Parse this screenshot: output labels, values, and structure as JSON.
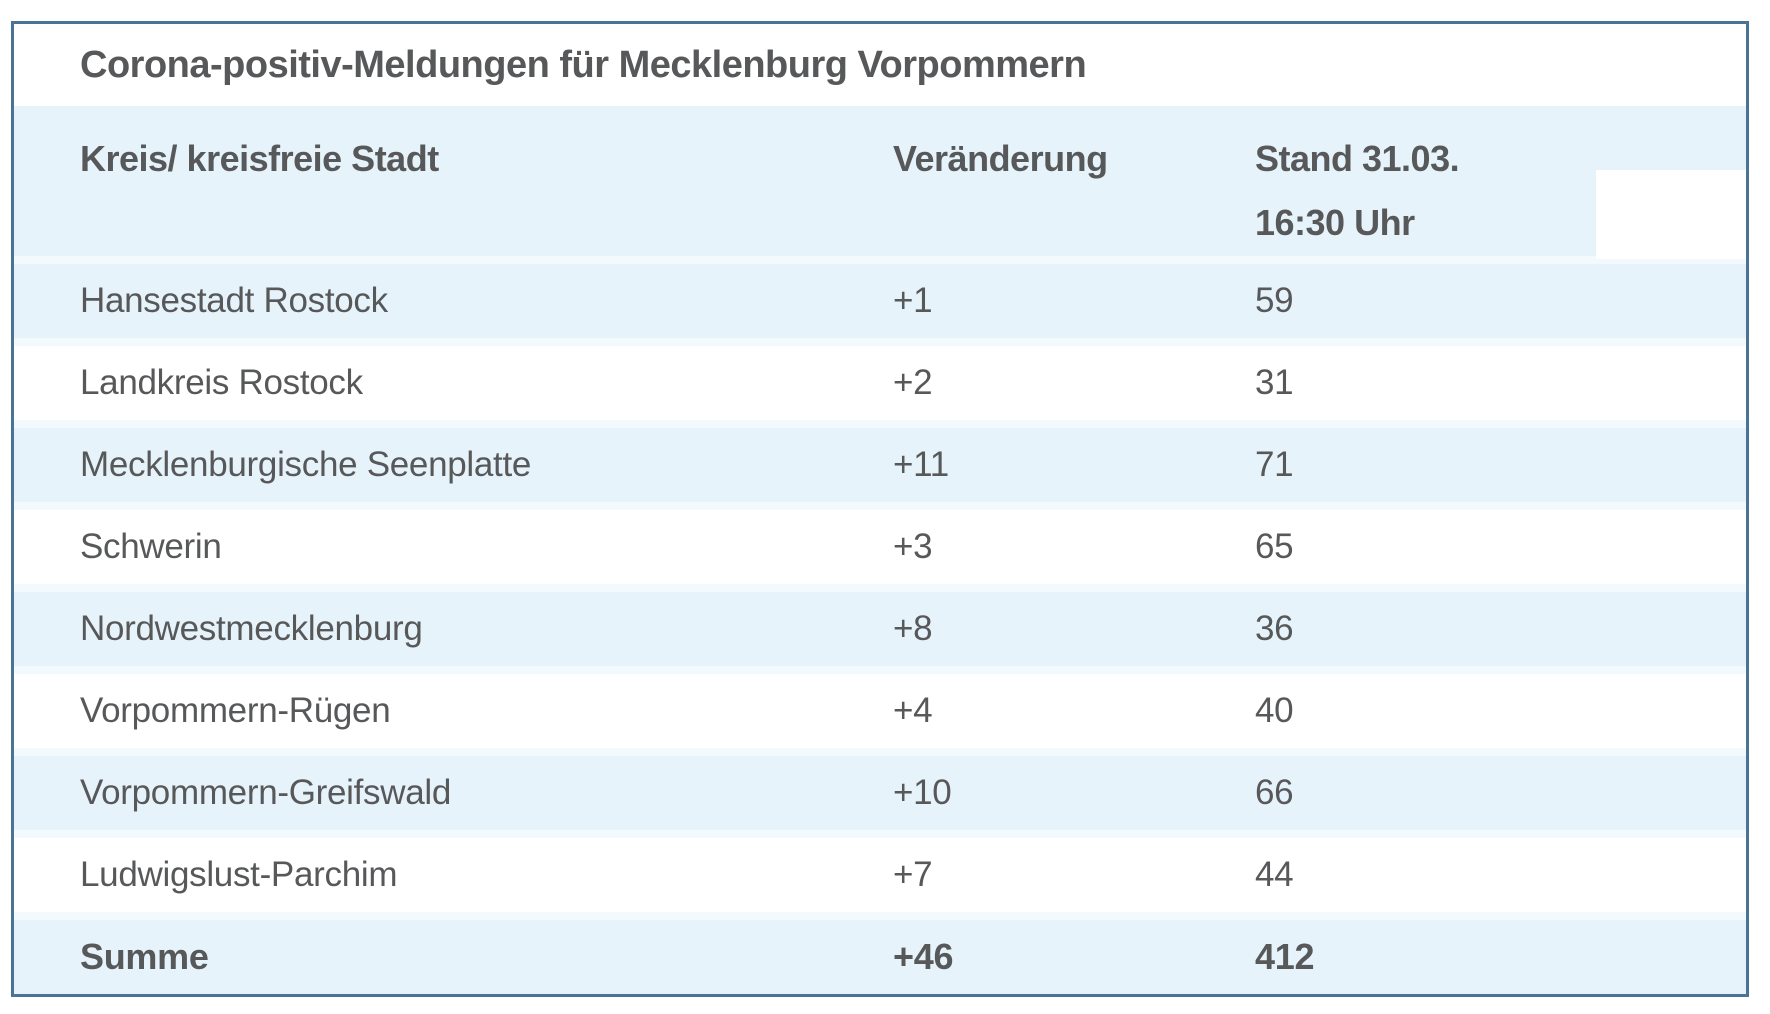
{
  "title": "Corona-positiv-Meldungen für Mecklenburg Vorpommern",
  "table": {
    "headers": {
      "district": "Kreis/ kreisfreie Stadt",
      "change": "Veränderung",
      "stand_line1": "Stand 31.03.",
      "stand_line2": "16:30 Uhr"
    },
    "rows": [
      {
        "district": "Hansestadt Rostock",
        "change": "+1",
        "stand": "59"
      },
      {
        "district": "Landkreis Rostock",
        "change": "+2",
        "stand": "31"
      },
      {
        "district": "Mecklenburgische Seenplatte",
        "change": "+11",
        "stand": "71"
      },
      {
        "district": "Schwerin",
        "change": "+3",
        "stand": "65"
      },
      {
        "district": "Nordwestmecklenburg",
        "change": "+8",
        "stand": "36"
      },
      {
        "district": "Vorpommern-Rügen",
        "change": "+4",
        "stand": "40"
      },
      {
        "district": "Vorpommern-Greifswald",
        "change": "+10",
        "stand": "66"
      },
      {
        "district": "Ludwigslust-Parchim",
        "change": "+7",
        "stand": "44"
      }
    ],
    "total": {
      "district": "Summe",
      "change": "+46",
      "stand": "412"
    }
  },
  "colors": {
    "accent_border": "#4a7495",
    "row_highlight": "#e7f3fa",
    "row_separator": "#f3fafd",
    "text": "#57585a"
  },
  "chart_data": {
    "type": "table",
    "title": "Corona-positiv-Meldungen für Mecklenburg Vorpommern",
    "columns": [
      "Kreis/ kreisfreie Stadt",
      "Veränderung",
      "Stand 31.03. 16:30 Uhr"
    ],
    "rows": [
      [
        "Hansestadt Rostock",
        "+1",
        59
      ],
      [
        "Landkreis Rostock",
        "+2",
        31
      ],
      [
        "Mecklenburgische Seenplatte",
        "+11",
        71
      ],
      [
        "Schwerin",
        "+3",
        65
      ],
      [
        "Nordwestmecklenburg",
        "+8",
        36
      ],
      [
        "Vorpommern-Rügen",
        "+4",
        40
      ],
      [
        "Vorpommern-Greifswald",
        "+10",
        66
      ],
      [
        "Ludwigslust-Parchim",
        "+7",
        44
      ]
    ],
    "totals": [
      "Summe",
      "+46",
      412
    ],
    "notes": "Alternating light-blue/white rows; bold total row; timestamp column header wraps onto two lines"
  }
}
